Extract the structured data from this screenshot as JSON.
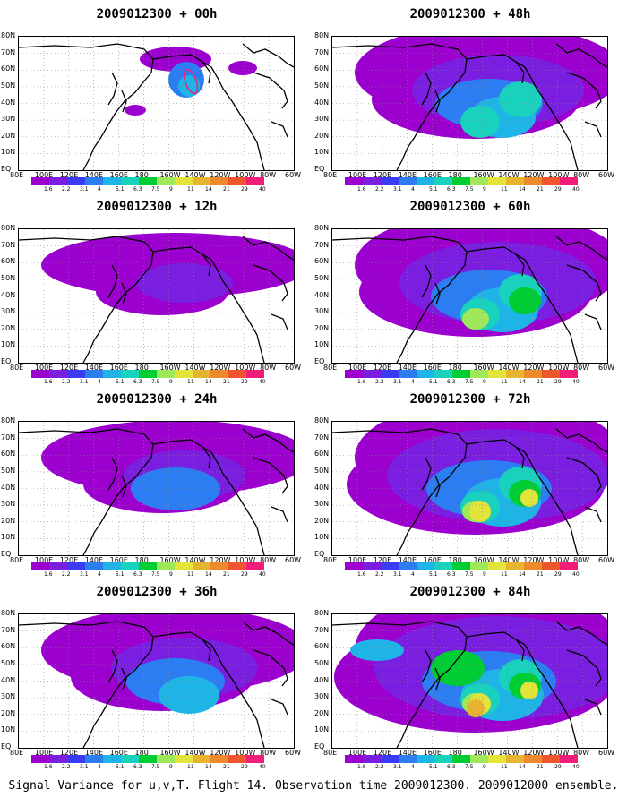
{
  "panels": [
    {
      "title": "2009012300 + 00h",
      "level": 0
    },
    {
      "title": "2009012300 + 48h",
      "level": 4
    },
    {
      "title": "2009012300 + 12h",
      "level": 1
    },
    {
      "title": "2009012300 + 60h",
      "level": 5
    },
    {
      "title": "2009012300 + 24h",
      "level": 2
    },
    {
      "title": "2009012300 + 72h",
      "level": 6
    },
    {
      "title": "2009012300 + 36h",
      "level": 3
    },
    {
      "title": "2009012300 + 84h",
      "level": 7
    }
  ],
  "lat_labels": [
    "80N",
    "70N",
    "60N",
    "50N",
    "40N",
    "30N",
    "20N",
    "10N",
    "EQ"
  ],
  "lon_labels": [
    "80E",
    "100E",
    "120E",
    "140E",
    "160E",
    "180",
    "160W",
    "140W",
    "120W",
    "100W",
    "80W",
    "60W"
  ],
  "colorbar": {
    "colors": [
      "#9b00cf",
      "#7a1ee0",
      "#3b3bf5",
      "#2c7df2",
      "#1fb4e6",
      "#18d2be",
      "#00cc33",
      "#9ee85a",
      "#e2e43a",
      "#e6b42e",
      "#ee8a2c",
      "#f0562e",
      "#f01e78"
    ],
    "labels": [
      "1.6",
      "2.2",
      "3.1",
      "4",
      "5.1",
      "6.3",
      "7.5",
      "9",
      "11",
      "14",
      "21",
      "29",
      "40"
    ]
  },
  "caption": "Signal Variance for u,v,T. Flight 14. Observation time 2009012300. 2009012000 ensemble."
}
